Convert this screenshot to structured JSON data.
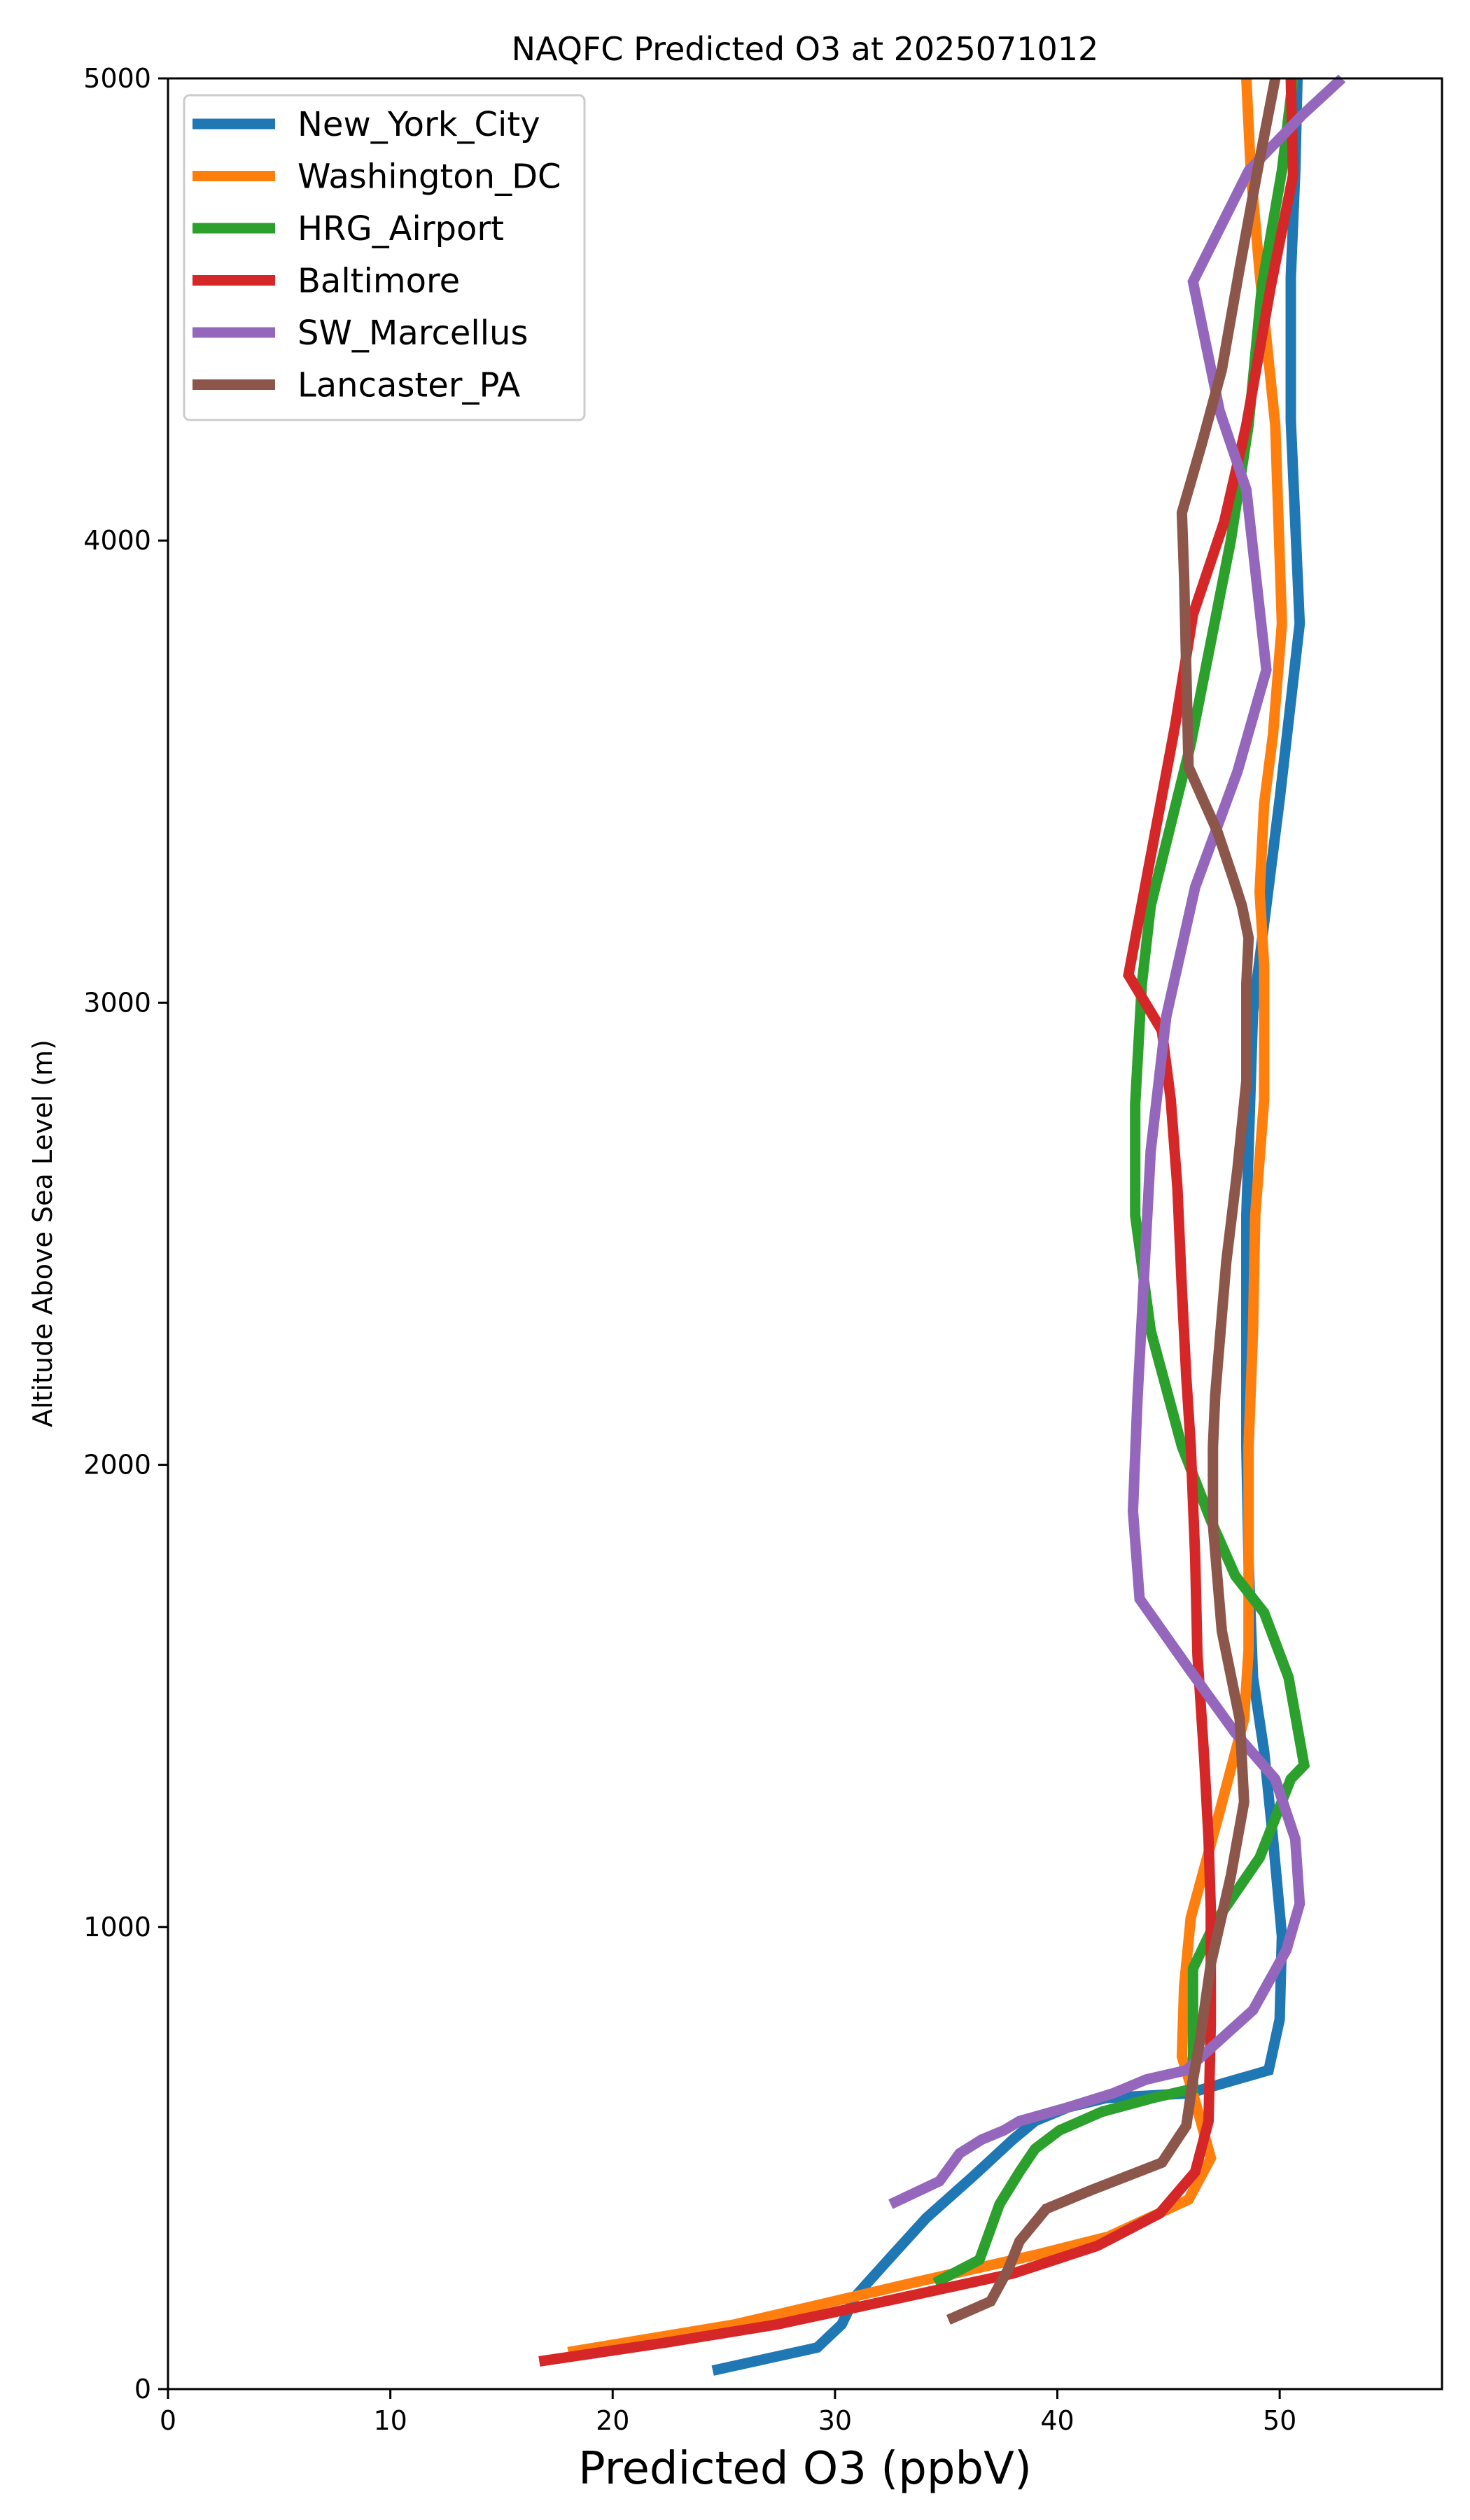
{
  "chart_data": {
    "type": "line",
    "title": "NAQFC Predicted O3 at 2025071012",
    "xlabel": "Predicted O3 (ppbV)",
    "ylabel": "Altitude Above Sea Level (m)",
    "xlim": [
      0,
      57.3
    ],
    "ylim": [
      0,
      5000
    ],
    "xticks": [
      0,
      10,
      20,
      30,
      40,
      50
    ],
    "yticks": [
      0,
      1000,
      2000,
      3000,
      4000,
      5000
    ],
    "grid": false,
    "legend_position": "upper-left",
    "series": [
      {
        "name": "New_York_City",
        "color": "#1f77b4",
        "x": [
          24.5,
          29.2,
          30.3,
          30.9,
          32.4,
          34.1,
          36.2,
          38.0,
          39.0,
          40.5,
          42.2,
          45.9,
          49.5,
          50.0,
          50.1,
          49.7,
          49.3,
          48.8,
          48.6,
          48.5,
          48.5,
          48.5,
          48.6,
          48.8,
          50.0,
          50.9,
          50.5,
          50.5,
          50.7,
          50.8
        ],
        "y": [
          40,
          90,
          140,
          200,
          280,
          370,
          460,
          540,
          580,
          610,
          630,
          640,
          690,
          800,
          980,
          1190,
          1380,
          1540,
          1790,
          2040,
          2290,
          2540,
          2680,
          2980,
          3440,
          3820,
          4260,
          4570,
          4800,
          5000
        ]
      },
      {
        "name": "Washington_DC",
        "color": "#ff7f0e",
        "x": [
          18.0,
          25.5,
          33.5,
          39.0,
          42.3,
          45.9,
          46.9,
          46.1,
          45.6,
          45.7,
          46.0,
          47.3,
          48.4,
          48.6,
          48.6,
          48.6,
          48.8,
          48.9,
          49.3,
          49.3,
          49.1,
          49.3,
          49.7,
          50.1,
          49.8,
          49.1,
          48.7,
          48.5
        ],
        "y": [
          80,
          140,
          230,
          290,
          330,
          410,
          500,
          640,
          720,
          870,
          1020,
          1250,
          1450,
          1600,
          1790,
          2040,
          2290,
          2540,
          2790,
          3080,
          3240,
          3430,
          3580,
          3820,
          4250,
          4580,
          4800,
          5000
        ]
      },
      {
        "name": "HRG_Airport",
        "color": "#2ca02c",
        "x": [
          34.5,
          36.5,
          37.4,
          38.3,
          39.0,
          40.1,
          42.0,
          44.3,
          46.1,
          46.1,
          47.1,
          49.1,
          50.5,
          51.1,
          50.4,
          49.3,
          48.0,
          46.9,
          45.6,
          44.2,
          43.5,
          43.5,
          43.8,
          44.2,
          46.0,
          47.8,
          48.6,
          49.2,
          50.1,
          50.6
        ],
        "y": [
          230,
          280,
          400,
          470,
          520,
          560,
          600,
          630,
          650,
          910,
          1010,
          1150,
          1320,
          1350,
          1540,
          1680,
          1760,
          1880,
          2040,
          2290,
          2540,
          2780,
          3040,
          3210,
          3560,
          4000,
          4250,
          4550,
          4800,
          5000
        ]
      },
      {
        "name": "Baltimore",
        "color": "#d62728",
        "x": [
          16.7,
          22.3,
          27.4,
          33.2,
          38.0,
          41.8,
          44.6,
          46.2,
          46.8,
          46.9,
          46.9,
          46.8,
          46.6,
          46.3,
          46.2,
          46.0,
          45.8,
          45.6,
          45.4,
          45.1,
          44.7,
          43.2,
          43.9,
          45.3,
          46.1,
          47.5,
          48.5,
          49.6,
          50.6,
          50.5
        ],
        "y": [
          60,
          100,
          140,
          200,
          250,
          310,
          380,
          470,
          580,
          790,
          1040,
          1190,
          1370,
          1590,
          1800,
          2040,
          2190,
          2380,
          2600,
          2790,
          2940,
          3060,
          3240,
          3600,
          3840,
          4040,
          4250,
          4550,
          4790,
          5000
        ]
      },
      {
        "name": "SW_Marcellus",
        "color": "#9467bd",
        "x": [
          32.5,
          34.7,
          35.6,
          36.6,
          37.6,
          38.3,
          40.5,
          42.5,
          44.0,
          45.8,
          48.8,
          50.3,
          50.9,
          50.7,
          49.8,
          48.0,
          45.9,
          43.7,
          43.4,
          43.6,
          44.2,
          44.9,
          46.2,
          48.1,
          49.4,
          48.5,
          47.3,
          46.1,
          48.6,
          51.0,
          52.8
        ],
        "y": [
          400,
          450,
          510,
          540,
          560,
          580,
          610,
          640,
          670,
          690,
          820,
          950,
          1050,
          1190,
          1320,
          1420,
          1560,
          1710,
          1900,
          2140,
          2680,
          2970,
          3250,
          3500,
          3720,
          4110,
          4280,
          4560,
          4800,
          4920,
          5000
        ]
      },
      {
        "name": "Lancaster_PA",
        "color": "#8c564b",
        "x": [
          35.1,
          37.0,
          37.8,
          38.3,
          39.5,
          41.5,
          44.7,
          45.8,
          46.1,
          46.4,
          46.9,
          47.8,
          48.4,
          48.2,
          47.4,
          47.0,
          47.0,
          47.1,
          47.6,
          48.1,
          48.5,
          48.5,
          48.6,
          48.3,
          47.9,
          47.2,
          45.9,
          45.7,
          45.6,
          46.5,
          47.4,
          48.2,
          49.0,
          49.8
        ],
        "y": [
          150,
          190,
          260,
          320,
          390,
          430,
          490,
          570,
          670,
          750,
          920,
          1110,
          1270,
          1450,
          1640,
          1870,
          2040,
          2150,
          2440,
          2640,
          2830,
          3040,
          3140,
          3210,
          3270,
          3370,
          3510,
          3920,
          4060,
          4210,
          4370,
          4590,
          4800,
          5000
        ]
      }
    ]
  }
}
